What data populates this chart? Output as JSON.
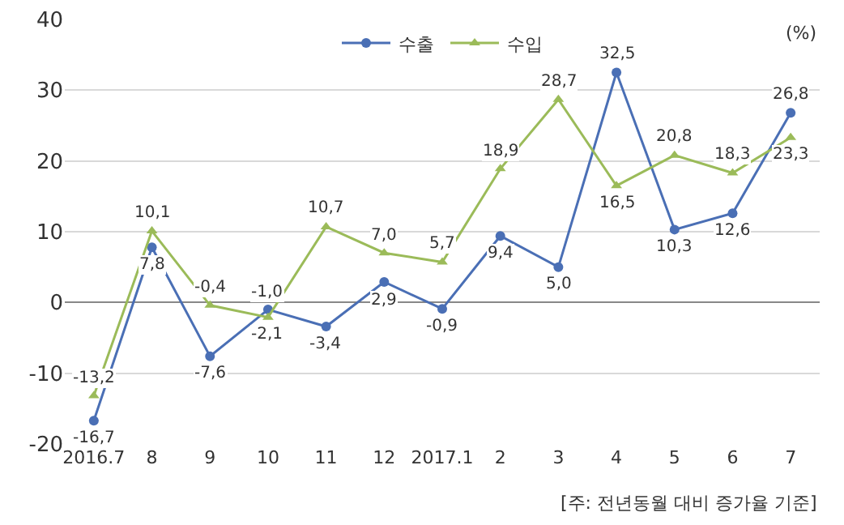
{
  "chart_data": {
    "type": "line",
    "categories": [
      "2016.7",
      "8",
      "9",
      "10",
      "11",
      "12",
      "2017.1",
      "2",
      "3",
      "4",
      "5",
      "6",
      "7"
    ],
    "series": [
      {
        "name": "수출",
        "color": "#4a6fb5",
        "marker": "circle",
        "values": [
          -16.7,
          7.8,
          -7.6,
          -1.0,
          -3.4,
          2.9,
          -0.9,
          9.4,
          5.0,
          32.5,
          10.3,
          12.6,
          26.8
        ],
        "value_labels": [
          "-16,7",
          "7,8",
          "-7,6",
          "-1,0",
          "-3,4",
          "2,9",
          "-0,9",
          "9,4",
          "5,0",
          "32,5",
          "10,3",
          "12,6",
          "26,8"
        ]
      },
      {
        "name": "수입",
        "color": "#9bbb59",
        "marker": "triangle",
        "values": [
          -13.2,
          10.1,
          -0.4,
          -2.1,
          10.7,
          7.0,
          5.7,
          18.9,
          28.7,
          16.5,
          20.8,
          18.3,
          23.3
        ],
        "value_labels": [
          "-13,2",
          "10,1",
          "-0,4",
          "-2,1",
          "10,7",
          "7,0",
          "5,7",
          "18,9",
          "28,7",
          "16,5",
          "20,8",
          "18,3",
          "23,3"
        ]
      }
    ],
    "ylim": [
      -20,
      40
    ],
    "yticks": [
      -20,
      -10,
      0,
      10,
      20,
      30,
      40
    ],
    "grid": "y",
    "legend": "top",
    "annotations": [
      "(%)",
      "[주: 전년동월 대비 증가율 기준]"
    ]
  }
}
